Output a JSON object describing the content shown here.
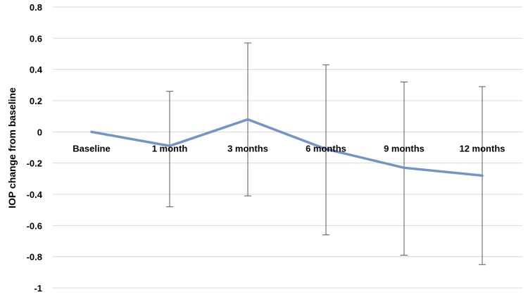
{
  "chart_data": {
    "type": "line",
    "title": "",
    "xlabel": "",
    "ylabel": "IOP change from baseline",
    "categories": [
      "Baseline",
      "1 month",
      "3 months",
      "6 months",
      "9 months",
      "12 months"
    ],
    "ylim": [
      -1,
      0.8
    ],
    "yticks": [
      0.8,
      0.6,
      0.4,
      0.2,
      0,
      -0.2,
      -0.4,
      -0.6,
      -0.8,
      -1
    ],
    "ytick_labels": [
      "0.8",
      "0.6",
      "0.4",
      "0.2",
      "0",
      "-0.2",
      "-0.4",
      "-0.6",
      "-0.8",
      "-1"
    ],
    "grid": true,
    "legend": "none",
    "series": [
      {
        "values": [
          0,
          -0.09,
          0.08,
          -0.11,
          -0.23,
          -0.28
        ],
        "error_upper": [
          null,
          0.26,
          0.57,
          0.43,
          0.32,
          0.29
        ],
        "error_lower": [
          null,
          -0.48,
          -0.41,
          -0.66,
          -0.79,
          -0.85
        ],
        "color": "#7394c6"
      }
    ],
    "error_bar_color": "#595959",
    "grid_color": "#d9d9d9"
  }
}
